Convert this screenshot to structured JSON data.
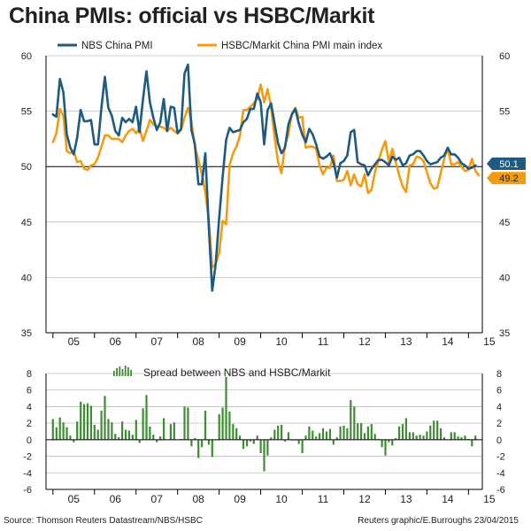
{
  "header": {
    "title": "China PMIs: official vs HSBC/Markit"
  },
  "footer": {
    "source": "Source: Thomson Reuters Datastream/NBS/HSBC",
    "credit": "Reuters graphic/E.Burroughs 23/04/2015"
  },
  "colors": {
    "nbs": "#1f5a80",
    "hsbc": "#f39c12",
    "spread": "#3f8c34",
    "reference": "#000000"
  },
  "chart_data": [
    {
      "type": "line",
      "title": "",
      "xlabel": "",
      "ylabel": "",
      "ylim": [
        35,
        60
      ],
      "y_ticks": [
        35,
        40,
        45,
        50,
        55,
        60
      ],
      "x_ticks": [
        "05",
        "06",
        "07",
        "08",
        "09",
        "10",
        "11",
        "12",
        "13",
        "14",
        "15"
      ],
      "x_range": [
        "2004-11",
        "2015-05"
      ],
      "legend": {
        "placement": "top",
        "entries": [
          "NBS China PMI",
          "HSBC/Markit China PMI main index"
        ]
      },
      "series": [
        {
          "name": "NBS China PMI",
          "color": "#1f5a80",
          "x": [
            "2005-01",
            "2005-02",
            "2005-03",
            "2005-04",
            "2005-05",
            "2005-06",
            "2005-07",
            "2005-08",
            "2005-09",
            "2005-10",
            "2005-11",
            "2005-12",
            "2006-01",
            "2006-02",
            "2006-03",
            "2006-04",
            "2006-05",
            "2006-06",
            "2006-07",
            "2006-08",
            "2006-09",
            "2006-10",
            "2006-11",
            "2006-12",
            "2007-01",
            "2007-02",
            "2007-03",
            "2007-04",
            "2007-05",
            "2007-06",
            "2007-07",
            "2007-08",
            "2007-09",
            "2007-10",
            "2007-11",
            "2007-12",
            "2008-01",
            "2008-02",
            "2008-03",
            "2008-04",
            "2008-05",
            "2008-06",
            "2008-07",
            "2008-08",
            "2008-09",
            "2008-10",
            "2008-11",
            "2008-12",
            "2009-01",
            "2009-02",
            "2009-03",
            "2009-04",
            "2009-05",
            "2009-06",
            "2009-07",
            "2009-08",
            "2009-09",
            "2009-10",
            "2009-11",
            "2009-12",
            "2010-01",
            "2010-02",
            "2010-03",
            "2010-04",
            "2010-05",
            "2010-06",
            "2010-07",
            "2010-08",
            "2010-09",
            "2010-10",
            "2010-11",
            "2010-12",
            "2011-01",
            "2011-02",
            "2011-03",
            "2011-04",
            "2011-05",
            "2011-06",
            "2011-07",
            "2011-08",
            "2011-09",
            "2011-10",
            "2011-11",
            "2011-12",
            "2012-01",
            "2012-02",
            "2012-03",
            "2012-04",
            "2012-05",
            "2012-06",
            "2012-07",
            "2012-08",
            "2012-09",
            "2012-10",
            "2012-11",
            "2012-12",
            "2013-01",
            "2013-02",
            "2013-03",
            "2013-04",
            "2013-05",
            "2013-06",
            "2013-07",
            "2013-08",
            "2013-09",
            "2013-10",
            "2013-11",
            "2013-12",
            "2014-01",
            "2014-02",
            "2014-03",
            "2014-04",
            "2014-05",
            "2014-06",
            "2014-07",
            "2014-08",
            "2014-09",
            "2014-10",
            "2014-11",
            "2014-12",
            "2015-01",
            "2015-02",
            "2015-03"
          ],
          "values": [
            54.7,
            54.5,
            57.9,
            56.7,
            52.9,
            51.7,
            51.1,
            52.6,
            55.1,
            54.1,
            54.1,
            54.2,
            52.0,
            52.0,
            55.3,
            58.1,
            55.3,
            54.6,
            53.2,
            52.8,
            54.4,
            54.0,
            54.3,
            54.0,
            55.4,
            53.1,
            56.1,
            58.6,
            55.8,
            54.4,
            53.3,
            54.0,
            56.1,
            53.2,
            55.4,
            55.3,
            53.0,
            53.4,
            58.4,
            59.2,
            53.3,
            52.0,
            48.4,
            48.4,
            51.2,
            44.6,
            38.8,
            41.2,
            45.3,
            49.0,
            52.4,
            53.5,
            53.1,
            53.2,
            53.3,
            54.0,
            54.3,
            55.2,
            55.2,
            56.6,
            55.8,
            52.0,
            55.1,
            55.7,
            53.9,
            52.1,
            51.2,
            51.7,
            53.8,
            54.7,
            55.2,
            53.9,
            52.9,
            52.2,
            53.4,
            52.9,
            52.0,
            50.9,
            50.7,
            50.9,
            51.2,
            50.4,
            49.0,
            50.3,
            50.5,
            51.0,
            53.1,
            53.3,
            50.4,
            50.2,
            50.1,
            49.2,
            49.8,
            50.2,
            50.6,
            50.6,
            50.4,
            50.1,
            50.9,
            50.6,
            50.8,
            50.1,
            50.3,
            51.0,
            51.1,
            51.4,
            51.4,
            51.0,
            50.5,
            50.2,
            50.3,
            50.4,
            50.8,
            51.0,
            51.7,
            51.1,
            51.1,
            50.8,
            50.3,
            50.1,
            49.8,
            49.9,
            50.1
          ]
        },
        {
          "name": "HSBC/Markit China PMI main index",
          "color": "#f39c12",
          "x": [
            "2005-01",
            "2005-02",
            "2005-03",
            "2005-04",
            "2005-05",
            "2005-06",
            "2005-07",
            "2005-08",
            "2005-09",
            "2005-10",
            "2005-11",
            "2005-12",
            "2006-01",
            "2006-02",
            "2006-03",
            "2006-04",
            "2006-05",
            "2006-06",
            "2006-07",
            "2006-08",
            "2006-09",
            "2006-10",
            "2006-11",
            "2006-12",
            "2007-01",
            "2007-02",
            "2007-03",
            "2007-04",
            "2007-05",
            "2007-06",
            "2007-07",
            "2007-08",
            "2007-09",
            "2007-10",
            "2007-11",
            "2007-12",
            "2008-01",
            "2008-02",
            "2008-03",
            "2008-04",
            "2008-05",
            "2008-06",
            "2008-07",
            "2008-08",
            "2008-09",
            "2008-10",
            "2008-11",
            "2008-12",
            "2009-01",
            "2009-02",
            "2009-03",
            "2009-04",
            "2009-05",
            "2009-06",
            "2009-07",
            "2009-08",
            "2009-09",
            "2009-10",
            "2009-11",
            "2009-12",
            "2010-01",
            "2010-02",
            "2010-03",
            "2010-04",
            "2010-05",
            "2010-06",
            "2010-07",
            "2010-08",
            "2010-09",
            "2010-10",
            "2010-11",
            "2010-12",
            "2011-01",
            "2011-02",
            "2011-03",
            "2011-04",
            "2011-05",
            "2011-06",
            "2011-07",
            "2011-08",
            "2011-09",
            "2011-10",
            "2011-11",
            "2011-12",
            "2012-01",
            "2012-02",
            "2012-03",
            "2012-04",
            "2012-05",
            "2012-06",
            "2012-07",
            "2012-08",
            "2012-09",
            "2012-10",
            "2012-11",
            "2012-12",
            "2013-01",
            "2013-02",
            "2013-03",
            "2013-04",
            "2013-05",
            "2013-06",
            "2013-07",
            "2013-08",
            "2013-09",
            "2013-10",
            "2013-11",
            "2013-12",
            "2014-01",
            "2014-02",
            "2014-03",
            "2014-04",
            "2014-05",
            "2014-06",
            "2014-07",
            "2014-08",
            "2014-09",
            "2014-10",
            "2014-11",
            "2014-12",
            "2015-01",
            "2015-02",
            "2015-03",
            "2015-04"
          ],
          "values": [
            52.2,
            53.0,
            55.2,
            54.6,
            51.4,
            51.2,
            51.4,
            50.4,
            50.5,
            49.8,
            49.7,
            50.1,
            50.2,
            50.8,
            51.8,
            52.8,
            52.8,
            52.5,
            52.5,
            52.5,
            52.2,
            52.8,
            53.2,
            53.4,
            53.0,
            53.5,
            52.3,
            53.2,
            54.2,
            53.8,
            53.6,
            53.6,
            53.5,
            53.2,
            53.5,
            53.2,
            53.0,
            53.3,
            54.4,
            55.3,
            54.1,
            51.8,
            50.6,
            49.3,
            47.7,
            45.2,
            40.9,
            41.2,
            42.2,
            45.1,
            44.8,
            50.1,
            51.2,
            51.8,
            52.8,
            55.1,
            55.1,
            55.4,
            55.7,
            56.1,
            57.4,
            55.8,
            57.0,
            55.4,
            52.7,
            50.4,
            49.4,
            51.9,
            52.9,
            54.8,
            55.3,
            54.4,
            54.5,
            51.7,
            51.8,
            51.8,
            51.6,
            50.1,
            49.3,
            49.9,
            49.9,
            51.0,
            48.7,
            48.7,
            48.8,
            49.6,
            48.3,
            49.3,
            48.4,
            48.2,
            49.3,
            47.6,
            47.9,
            49.5,
            50.5,
            51.5,
            52.3,
            50.4,
            51.6,
            50.4,
            49.2,
            48.2,
            47.7,
            50.1,
            50.2,
            50.9,
            50.8,
            50.5,
            49.5,
            48.5,
            48.0,
            48.1,
            49.4,
            50.7,
            51.7,
            50.2,
            50.2,
            50.4,
            50.0,
            49.6,
            49.7,
            50.7,
            49.6,
            49.2
          ]
        }
      ],
      "end_labels": [
        {
          "text": "50.1",
          "series": "NBS China PMI"
        },
        {
          "text": "49.2",
          "series": "HSBC/Markit China PMI main index"
        }
      ]
    },
    {
      "type": "bar",
      "title": "",
      "xlabel": "",
      "ylabel": "",
      "ylim": [
        -6,
        8
      ],
      "y_ticks": [
        -6,
        -4,
        -2,
        0,
        2,
        4,
        6,
        8
      ],
      "x_ticks": [
        "05",
        "06",
        "07",
        "08",
        "09",
        "10",
        "11",
        "12",
        "13",
        "14",
        "15"
      ],
      "legend": {
        "placement": "top",
        "entries": [
          "Spread between NBS and HSBC/Markit"
        ]
      },
      "series": [
        {
          "name": "Spread between NBS and HSBC/Markit",
          "color": "#3f8c34",
          "start": "2005-01",
          "values": [
            2.5,
            1.5,
            2.7,
            2.1,
            1.5,
            0.5,
            -0.3,
            2.2,
            4.6,
            4.3,
            4.4,
            4.1,
            1.8,
            1.2,
            3.5,
            5.3,
            2.5,
            2.1,
            0.7,
            0.3,
            2.2,
            1.2,
            1.1,
            0.6,
            2.4,
            -0.4,
            3.8,
            5.4,
            1.6,
            0.6,
            -0.3,
            0.4,
            2.6,
            0.0,
            1.9,
            2.1,
            0.0,
            0.1,
            4.0,
            3.9,
            -0.8,
            0.2,
            -2.2,
            -0.9,
            3.5,
            -0.6,
            -2.1,
            0.0,
            3.1,
            3.9,
            7.6,
            3.4,
            1.9,
            1.4,
            0.5,
            -1.1,
            -0.8,
            -0.2,
            -0.5,
            0.5,
            -1.6,
            -3.8,
            -1.9,
            0.3,
            1.2,
            1.7,
            1.8,
            -0.2,
            0.9,
            -0.1,
            -0.1,
            -0.5,
            -1.6,
            0.5,
            1.6,
            1.1,
            0.4,
            0.8,
            1.4,
            1.0,
            1.3,
            -0.6,
            0.3,
            1.6,
            1.7,
            1.4,
            4.8,
            4.0,
            2.0,
            2.0,
            0.8,
            1.6,
            1.9,
            0.7,
            0.1,
            -0.9,
            -1.9,
            -0.3,
            -0.7,
            0.2,
            1.6,
            1.9,
            2.6,
            0.9,
            0.9,
            0.5,
            0.6,
            0.5,
            1.0,
            1.7,
            2.3,
            2.3,
            1.4,
            0.3,
            0.0,
            0.9,
            0.9,
            0.4,
            0.3,
            0.5,
            0.1,
            -0.8,
            0.5
          ]
        }
      ]
    }
  ]
}
